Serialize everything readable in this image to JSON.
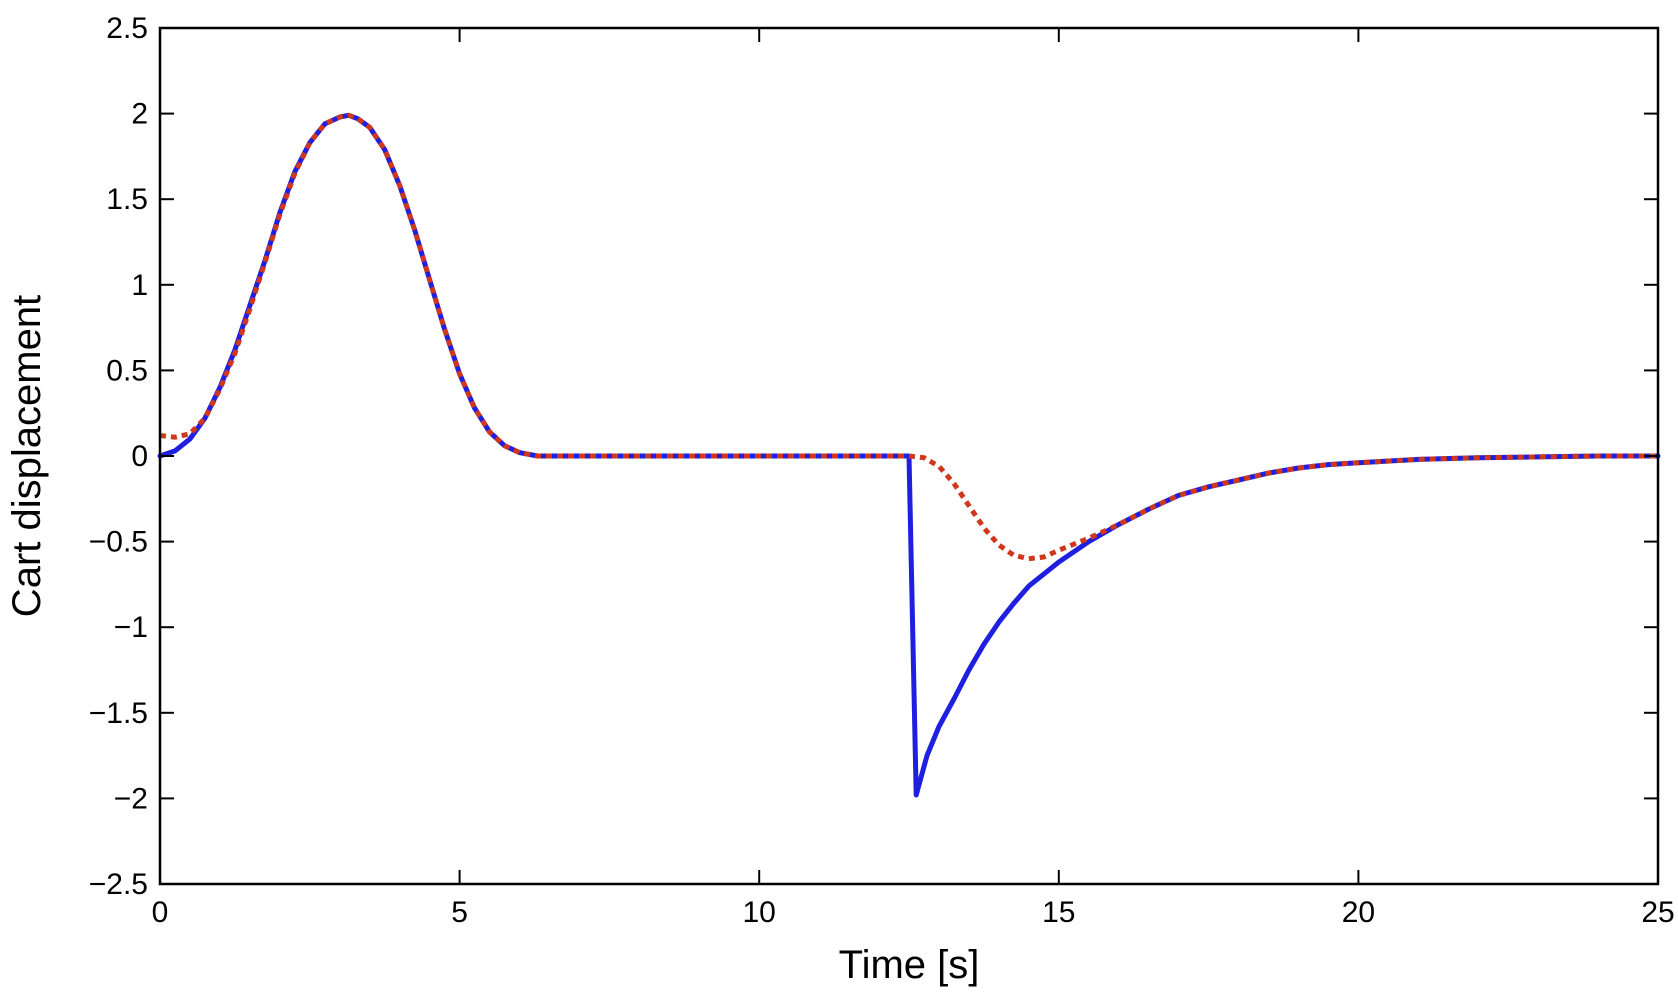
{
  "chart_data": {
    "type": "line",
    "title": "",
    "xlabel": "Time [s]",
    "ylabel": "Cart displacement",
    "xlim": [
      0,
      25
    ],
    "ylim": [
      -2.5,
      2.5
    ],
    "grid": false,
    "legend": "none",
    "x_ticks": [
      0,
      5,
      10,
      15,
      20,
      25
    ],
    "x_tick_labels": [
      "0",
      "5",
      "10",
      "15",
      "20",
      "25"
    ],
    "y_ticks": [
      2.5,
      2,
      1.5,
      1,
      0.5,
      0,
      -0.5,
      -1,
      -1.5,
      -2,
      -2.5
    ],
    "y_tick_labels": [
      "2.5",
      "2",
      "1.5",
      "1",
      "0.5",
      "0",
      "−0.5",
      "−1",
      "−1.5",
      "−2",
      "−2.5"
    ],
    "series": [
      {
        "style": "solid",
        "color": "#1f1fe0",
        "points": [
          [
            0,
            0
          ],
          [
            0.25,
            0.03
          ],
          [
            0.5,
            0.1
          ],
          [
            0.75,
            0.22
          ],
          [
            1.0,
            0.4
          ],
          [
            1.25,
            0.62
          ],
          [
            1.5,
            0.88
          ],
          [
            1.75,
            1.14
          ],
          [
            2.0,
            1.42
          ],
          [
            2.25,
            1.66
          ],
          [
            2.5,
            1.83
          ],
          [
            2.75,
            1.94
          ],
          [
            3.0,
            1.98
          ],
          [
            3.15,
            1.99
          ],
          [
            3.3,
            1.97
          ],
          [
            3.5,
            1.92
          ],
          [
            3.75,
            1.79
          ],
          [
            4.0,
            1.58
          ],
          [
            4.25,
            1.32
          ],
          [
            4.5,
            1.03
          ],
          [
            4.75,
            0.74
          ],
          [
            5.0,
            0.48
          ],
          [
            5.25,
            0.28
          ],
          [
            5.5,
            0.14
          ],
          [
            5.75,
            0.06
          ],
          [
            6.0,
            0.02
          ],
          [
            6.3,
            0
          ],
          [
            8,
            0
          ],
          [
            10,
            0
          ],
          [
            12,
            0
          ],
          [
            12.5,
            0
          ],
          [
            12.62,
            -1.98
          ],
          [
            12.8,
            -1.75
          ],
          [
            13.0,
            -1.58
          ],
          [
            13.25,
            -1.42
          ],
          [
            13.5,
            -1.25
          ],
          [
            13.75,
            -1.1
          ],
          [
            14.0,
            -0.97
          ],
          [
            14.25,
            -0.86
          ],
          [
            14.5,
            -0.76
          ],
          [
            15.0,
            -0.62
          ],
          [
            15.5,
            -0.5
          ],
          [
            16.0,
            -0.4
          ],
          [
            16.5,
            -0.31
          ],
          [
            17.0,
            -0.23
          ],
          [
            17.5,
            -0.18
          ],
          [
            18.0,
            -0.14
          ],
          [
            18.5,
            -0.1
          ],
          [
            19.0,
            -0.07
          ],
          [
            19.5,
            -0.05
          ],
          [
            20.0,
            -0.04
          ],
          [
            21.0,
            -0.02
          ],
          [
            22.0,
            -0.01
          ],
          [
            23.0,
            -0.005
          ],
          [
            24.0,
            0
          ],
          [
            25.0,
            0
          ]
        ]
      },
      {
        "style": "dotted",
        "color": "#d0381e",
        "points": [
          [
            0,
            0.12
          ],
          [
            0.25,
            0.11
          ],
          [
            0.5,
            0.13
          ],
          [
            0.75,
            0.22
          ],
          [
            1.0,
            0.39
          ],
          [
            1.25,
            0.6
          ],
          [
            1.5,
            0.86
          ],
          [
            1.75,
            1.13
          ],
          [
            2.0,
            1.41
          ],
          [
            2.25,
            1.65
          ],
          [
            2.5,
            1.83
          ],
          [
            2.75,
            1.94
          ],
          [
            3.0,
            1.98
          ],
          [
            3.15,
            1.99
          ],
          [
            3.3,
            1.97
          ],
          [
            3.5,
            1.92
          ],
          [
            3.75,
            1.79
          ],
          [
            4.0,
            1.58
          ],
          [
            4.25,
            1.32
          ],
          [
            4.5,
            1.03
          ],
          [
            4.75,
            0.74
          ],
          [
            5.0,
            0.48
          ],
          [
            5.25,
            0.28
          ],
          [
            5.5,
            0.14
          ],
          [
            5.75,
            0.06
          ],
          [
            6.0,
            0.02
          ],
          [
            6.3,
            0
          ],
          [
            8,
            0
          ],
          [
            10,
            0
          ],
          [
            12,
            0
          ],
          [
            12.5,
            0
          ],
          [
            12.75,
            -0.01
          ],
          [
            13.0,
            -0.06
          ],
          [
            13.25,
            -0.16
          ],
          [
            13.5,
            -0.29
          ],
          [
            13.75,
            -0.42
          ],
          [
            14.0,
            -0.52
          ],
          [
            14.25,
            -0.58
          ],
          [
            14.5,
            -0.6
          ],
          [
            14.75,
            -0.59
          ],
          [
            15.0,
            -0.55
          ],
          [
            15.5,
            -0.48
          ],
          [
            16.0,
            -0.4
          ],
          [
            16.5,
            -0.31
          ],
          [
            17.0,
            -0.23
          ],
          [
            17.5,
            -0.18
          ],
          [
            18.0,
            -0.14
          ],
          [
            18.5,
            -0.1
          ],
          [
            19.0,
            -0.07
          ],
          [
            19.5,
            -0.05
          ],
          [
            20.0,
            -0.04
          ],
          [
            21.0,
            -0.02
          ],
          [
            22.0,
            -0.01
          ],
          [
            23.0,
            -0.005
          ],
          [
            24.0,
            0
          ],
          [
            25.0,
            0
          ]
        ]
      }
    ]
  }
}
